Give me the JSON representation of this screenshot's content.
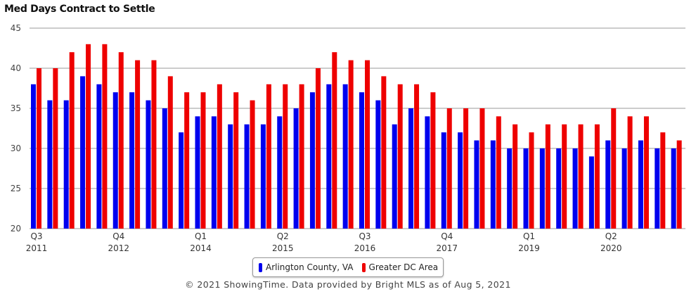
{
  "chart_data": {
    "type": "bar",
    "title": "Med Days Contract to Settle",
    "xlabel": "",
    "ylabel": "",
    "ylim": [
      20,
      45
    ],
    "yticks": [
      20,
      25,
      30,
      35,
      40,
      45
    ],
    "grid": true,
    "legend_position": "bottom-center",
    "quarter_labels": [
      {
        "index": 0,
        "quarter": "Q3",
        "year": "2011"
      },
      {
        "index": 5,
        "quarter": "Q4",
        "year": "2012"
      },
      {
        "index": 10,
        "quarter": "Q1",
        "year": "2014"
      },
      {
        "index": 15,
        "quarter": "Q2",
        "year": "2015"
      },
      {
        "index": 20,
        "quarter": "Q3",
        "year": "2016"
      },
      {
        "index": 25,
        "quarter": "Q4",
        "year": "2017"
      },
      {
        "index": 30,
        "quarter": "Q1",
        "year": "2019"
      },
      {
        "index": 35,
        "quarter": "Q2",
        "year": "2020"
      }
    ],
    "series": [
      {
        "name": "Arlington County, VA",
        "color": "#0000ee",
        "values": [
          38,
          36,
          36,
          39,
          38,
          37,
          37,
          36,
          35,
          32,
          34,
          34,
          33,
          33,
          33,
          34,
          35,
          37,
          38,
          38,
          37,
          36,
          33,
          35,
          34,
          32,
          32,
          31,
          31,
          30,
          30,
          30,
          30,
          30,
          29,
          31,
          30,
          31,
          30,
          30
        ]
      },
      {
        "name": "Greater DC Area",
        "color": "#ee0000",
        "values": [
          40,
          40,
          42,
          43,
          43,
          42,
          41,
          41,
          39,
          37,
          37,
          38,
          37,
          36,
          38,
          38,
          38,
          40,
          42,
          41,
          41,
          39,
          38,
          38,
          37,
          35,
          35,
          35,
          34,
          33,
          32,
          33,
          33,
          33,
          33,
          35,
          34,
          34,
          32,
          31
        ]
      }
    ]
  },
  "footer": {
    "text": "© 2021 ShowingTime. Data provided by Bright MLS as of Aug 5, 2021"
  }
}
